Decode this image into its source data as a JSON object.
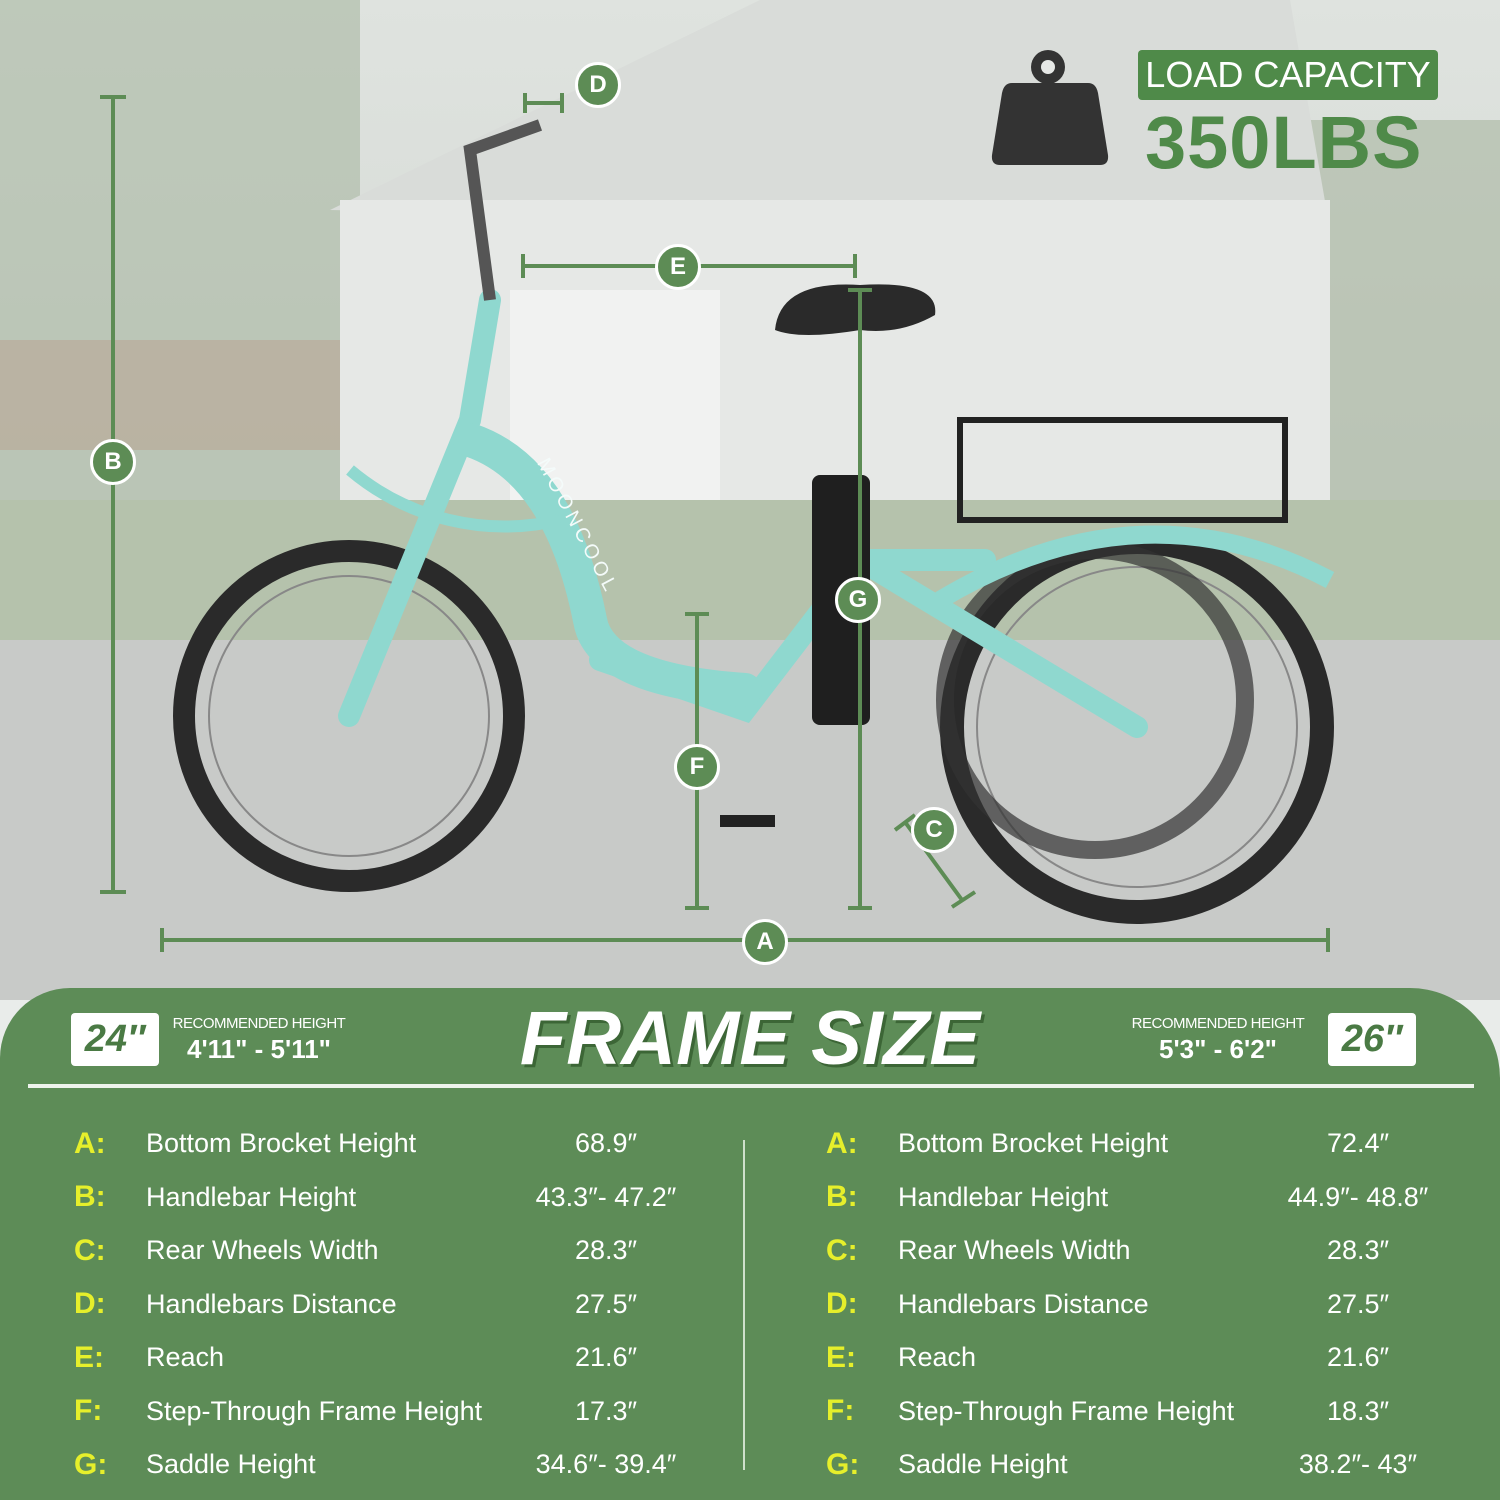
{
  "brand": "MOONCOOL",
  "load": {
    "label": "LOAD CAPACITY",
    "value": "350LBS",
    "icon": "weight-icon"
  },
  "dimensions": [
    "A",
    "B",
    "C",
    "D",
    "E",
    "F",
    "G"
  ],
  "frame": {
    "title": "FRAME SIZE",
    "left": {
      "size": "24″",
      "rec_label": "RECOMMENDED HEIGHT",
      "rec_value": "4'11\" - 5'11\""
    },
    "right": {
      "size": "26″",
      "rec_label": "RECOMMENDED HEIGHT",
      "rec_value": "5'3\" - 6'2\""
    }
  },
  "specs_24": [
    {
      "key": "A:",
      "name": "Bottom Brocket Height",
      "value": "68.9″"
    },
    {
      "key": "B:",
      "name": "Handlebar Height",
      "value": "43.3″- 47.2″"
    },
    {
      "key": "C:",
      "name": "Rear Wheels Width",
      "value": "28.3″"
    },
    {
      "key": "D:",
      "name": "Handlebars Distance",
      "value": "27.5″"
    },
    {
      "key": "E:",
      "name": "Reach",
      "value": "21.6″"
    },
    {
      "key": "F:",
      "name": "Step-Through Frame Height",
      "value": "17.3″"
    },
    {
      "key": "G:",
      "name": "Saddle Height",
      "value": "34.6″- 39.4″"
    }
  ],
  "specs_26": [
    {
      "key": "A:",
      "name": "Bottom Brocket Height",
      "value": "72.4″"
    },
    {
      "key": "B:",
      "name": "Handlebar Height",
      "value": "44.9″- 48.8″"
    },
    {
      "key": "C:",
      "name": "Rear Wheels Width",
      "value": "28.3″"
    },
    {
      "key": "D:",
      "name": "Handlebars Distance",
      "value": "27.5″"
    },
    {
      "key": "E:",
      "name": "Reach",
      "value": "21.6″"
    },
    {
      "key": "F:",
      "name": "Step-Through Frame Height",
      "value": "18.3″"
    },
    {
      "key": "G:",
      "name": "Saddle Height",
      "value": "38.2″- 43″"
    }
  ],
  "colors": {
    "panel": "#5d8c57",
    "accent_letter": "#e6ef2b",
    "frame": "#8fd8cf"
  }
}
